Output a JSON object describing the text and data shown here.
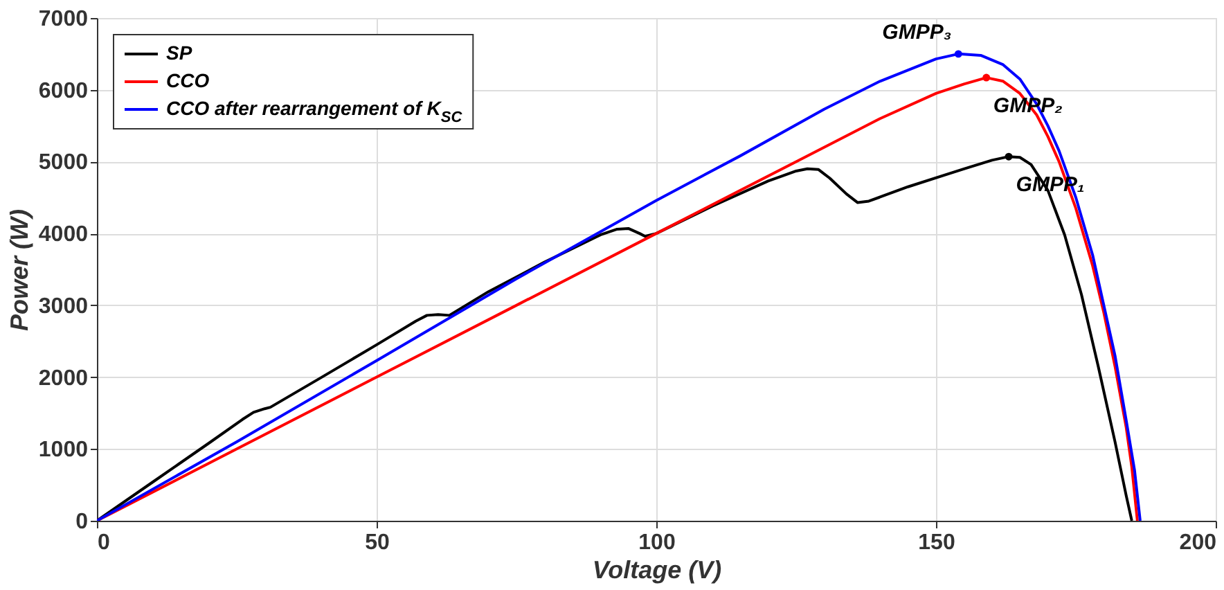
{
  "chart_data": {
    "type": "line",
    "xlabel": "Voltage (V)",
    "ylabel": "Power (W)",
    "xlim": [
      0,
      200
    ],
    "xticks": [
      0,
      50,
      100,
      150,
      200
    ],
    "ylim": [
      0,
      7000
    ],
    "yticks": [
      0,
      1000,
      2000,
      3000,
      4000,
      5000,
      6000,
      7000
    ],
    "grid": true,
    "legend": "top left",
    "line_style": "solid",
    "marker": "none",
    "series": [
      {
        "name": "SP",
        "color": "#000000",
        "x": [
          0,
          10,
          20,
          26,
          28,
          30,
          31,
          40,
          50,
          57,
          59,
          61,
          63,
          70,
          80,
          90,
          93,
          95,
          97,
          98,
          100,
          110,
          120,
          125,
          127,
          129,
          131,
          134,
          136,
          138,
          145,
          155,
          160,
          163,
          165,
          167,
          170,
          173,
          176,
          179,
          182,
          184,
          185
        ],
        "values": [
          0,
          540,
          1080,
          1410,
          1510,
          1560,
          1580,
          1990,
          2450,
          2780,
          2860,
          2870,
          2860,
          3190,
          3600,
          3980,
          4060,
          4070,
          4000,
          3960,
          4000,
          4380,
          4730,
          4870,
          4900,
          4890,
          4770,
          4550,
          4430,
          4450,
          4650,
          4900,
          5020,
          5070,
          5060,
          4960,
          4600,
          3980,
          3150,
          2150,
          1100,
          350,
          0
        ]
      },
      {
        "name": "CCO",
        "color": "#ff0000",
        "x": [
          0,
          25,
          50,
          75,
          100,
          125,
          140,
          150,
          155,
          159,
          162,
          165,
          168,
          170,
          172,
          175,
          178,
          180,
          182,
          184,
          185,
          186
        ],
        "values": [
          0,
          1000,
          2000,
          3000,
          4000,
          5000,
          5600,
          5950,
          6080,
          6170,
          6120,
          5950,
          5650,
          5350,
          5000,
          4350,
          3550,
          2900,
          2150,
          1300,
          750,
          0
        ]
      },
      {
        "name": "CCO after rearrangement of K$_{SC}$",
        "color": "#0000ff",
        "x": [
          0,
          25,
          50,
          75,
          100,
          115,
          130,
          140,
          150,
          154,
          158,
          162,
          165,
          168,
          170,
          172,
          175,
          178,
          180,
          182,
          184,
          185.5,
          186.5
        ],
        "values": [
          0,
          1100,
          2230,
          3370,
          4460,
          5080,
          5730,
          6120,
          6430,
          6500,
          6480,
          6350,
          6150,
          5800,
          5500,
          5150,
          4500,
          3700,
          3000,
          2300,
          1400,
          700,
          0
        ]
      }
    ],
    "annotations": [
      {
        "text": "GMPP₃",
        "x": 154,
        "y": 6500
      },
      {
        "text": "GMPP₂",
        "x": 159,
        "y": 6170
      },
      {
        "text": "GMPP₁",
        "x": 163,
        "y": 5070
      }
    ]
  }
}
